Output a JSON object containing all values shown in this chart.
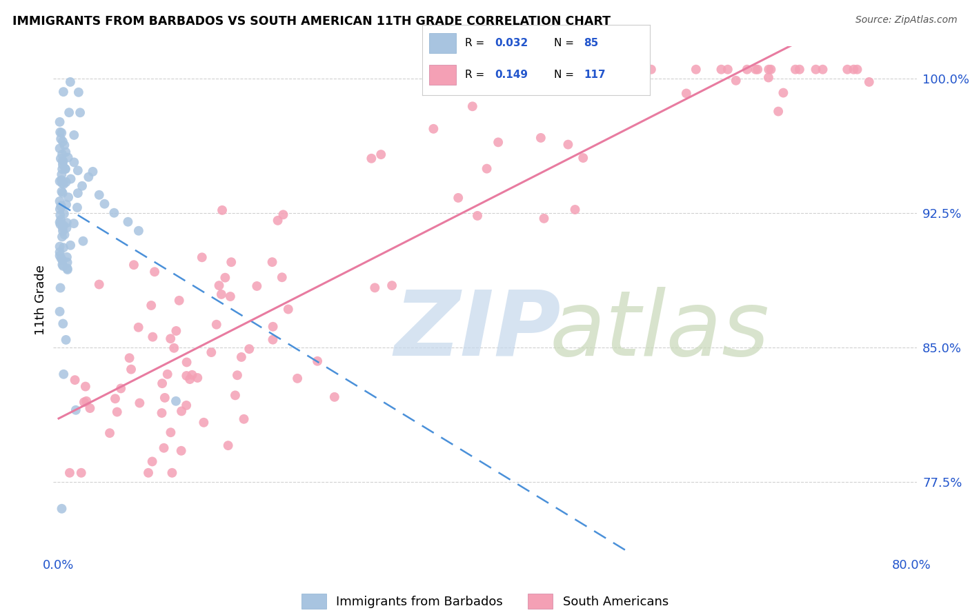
{
  "title": "IMMIGRANTS FROM BARBADOS VS SOUTH AMERICAN 11TH GRADE CORRELATION CHART",
  "source": "Source: ZipAtlas.com",
  "ylabel": "11th Grade",
  "ytick_labels": [
    "100.0%",
    "92.5%",
    "85.0%",
    "77.5%"
  ],
  "ytick_values": [
    1.0,
    0.925,
    0.85,
    0.775
  ],
  "xlim": [
    -0.005,
    0.805
  ],
  "ylim": [
    0.735,
    1.018
  ],
  "R_barbados": 0.032,
  "N_barbados": 85,
  "R_south_american": 0.149,
  "N_south_american": 117,
  "barbados_color": "#a8c4e0",
  "south_american_color": "#f4a0b5",
  "trend_barbados_color": "#4a90d9",
  "trend_south_american_color": "#e87ba0",
  "legend_label_1": "Immigrants from Barbados",
  "legend_label_2": "South Americans"
}
